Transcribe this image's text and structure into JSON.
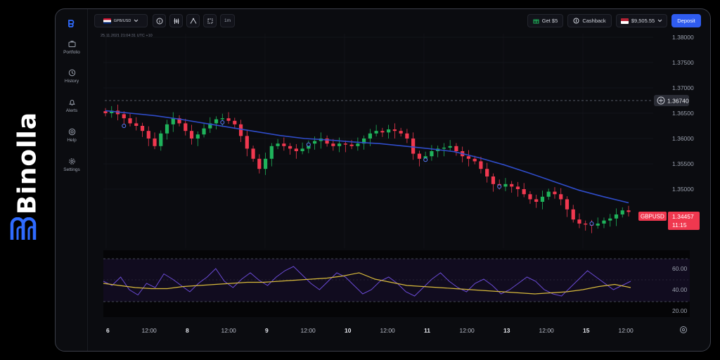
{
  "brand": {
    "name": "Binolla"
  },
  "sidebar": {
    "items": [
      {
        "label": "Portfolio",
        "icon": "briefcase-icon"
      },
      {
        "label": "History",
        "icon": "history-icon"
      },
      {
        "label": "Alerts",
        "icon": "bell-icon"
      },
      {
        "label": "Help",
        "icon": "help-icon"
      },
      {
        "label": "Settings",
        "icon": "gear-icon"
      }
    ]
  },
  "toolbar": {
    "pair": "GPB/USD",
    "timeframe": "1m",
    "get_bonus": "Get $5",
    "cashback": "Cashback",
    "balance": "$9,505.55",
    "deposit": "Deposit"
  },
  "chart": {
    "timestamp": "25.11.2021  21:04:31  UTC +10",
    "price_ticks": [
      "1.38000",
      "1.37500",
      "1.37000",
      "1.36500",
      "1.36000",
      "1.35500",
      "1.35000"
    ],
    "marked_price": "1.36740",
    "symbol_tag": "GBPUSD",
    "last_price": "1.34457",
    "countdown": "11:15",
    "rsi_ticks": [
      "60.00",
      "40.00",
      "20.00"
    ],
    "time_ticks": [
      "6",
      "12:00",
      "8",
      "12:00",
      "9",
      "12:00",
      "10",
      "12:00",
      "11",
      "12:00",
      "13",
      "12:00",
      "15",
      "12:00"
    ],
    "colors": {
      "bull": "#1fb35b",
      "bear": "#f0384f",
      "ma": "#2f4cc9",
      "rsi": "#6b4bd6",
      "rsi_ma": "#d7b93b",
      "accent": "#2f5cf0"
    }
  },
  "chart_data": {
    "type": "candlestick",
    "ylim": [
      1.342,
      1.3805
    ],
    "price_series": [
      1.365,
      1.3655,
      1.3648,
      1.364,
      1.363,
      1.3625,
      1.3615,
      1.36,
      1.3585,
      1.361,
      1.3628,
      1.364,
      1.363,
      1.3615,
      1.36,
      1.3608,
      1.362,
      1.363,
      1.3638,
      1.364,
      1.3635,
      1.3628,
      1.3605,
      1.358,
      1.356,
      1.354,
      1.356,
      1.3585,
      1.359,
      1.3585,
      1.358,
      1.3575,
      1.358,
      1.359,
      1.3595,
      1.36,
      1.359,
      1.3585,
      1.359,
      1.3588,
      1.3585,
      1.359,
      1.36,
      1.361,
      1.3615,
      1.3612,
      1.3618,
      1.3615,
      1.361,
      1.36,
      1.357,
      1.356,
      1.3565,
      1.3575,
      1.358,
      1.3582,
      1.3585,
      1.3575,
      1.3565,
      1.356,
      1.3555,
      1.354,
      1.3525,
      1.351,
      1.3505,
      1.351,
      1.3505,
      1.35,
      1.349,
      1.348,
      1.3475,
      1.3485,
      1.3495,
      1.349,
      1.348,
      1.346,
      1.344,
      1.3432,
      1.343,
      1.3428,
      1.3432,
      1.3438,
      1.3442,
      1.345,
      1.3458,
      1.3455
    ],
    "ma_series": [
      1.3655,
      1.365,
      1.3645,
      1.3638,
      1.363,
      1.3622,
      1.3614,
      1.3606,
      1.36,
      1.3597,
      1.3593,
      1.359,
      1.3585,
      1.358,
      1.3574,
      1.3562,
      1.3548,
      1.3532,
      1.3515,
      1.3498,
      1.3485,
      1.3473
    ],
    "rsi_series": [
      48,
      44,
      52,
      40,
      35,
      46,
      42,
      55,
      50,
      44,
      38,
      46,
      52,
      60,
      48,
      42,
      50,
      56,
      49,
      44,
      52,
      58,
      62,
      54,
      46,
      40,
      48,
      56,
      52,
      44,
      36,
      40,
      48,
      52,
      46,
      38,
      34,
      42,
      50,
      56,
      48,
      42,
      38,
      46,
      50,
      44,
      36,
      40,
      46,
      52,
      48,
      40,
      36,
      34,
      42,
      50,
      58,
      52,
      46,
      40,
      44,
      48
    ],
    "rsi_ma_series": [
      46,
      44,
      42,
      41,
      41,
      43,
      44,
      45,
      46,
      47,
      47,
      48,
      49,
      50,
      51,
      53,
      56,
      50,
      47,
      44,
      43,
      42,
      41,
      40,
      39,
      38,
      37,
      36,
      37,
      38,
      40,
      43,
      45,
      42
    ],
    "rsi_ylim": [
      20,
      70
    ],
    "markers": [
      {
        "index": 3,
        "price": 1.3625
      },
      {
        "index": 19,
        "price": 1.3632
      },
      {
        "index": 33,
        "price": 1.3588
      },
      {
        "index": 52,
        "price": 1.3558
      },
      {
        "index": 64,
        "price": 1.3505
      },
      {
        "index": 79,
        "price": 1.3432
      }
    ]
  }
}
